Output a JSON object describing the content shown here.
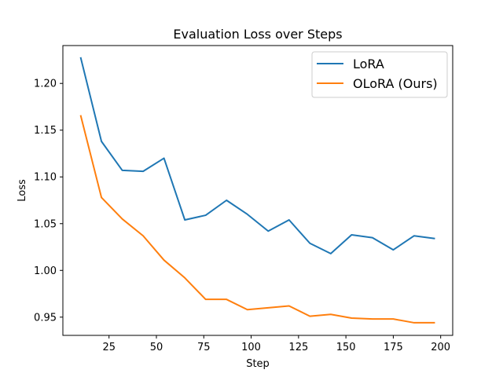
{
  "chart_data": {
    "type": "line",
    "title": "Evaluation Loss over Steps",
    "xlabel": "Step",
    "ylabel": "Loss",
    "xlim": [
      0.65,
      206.35
    ],
    "ylim": [
      0.9305,
      1.2405
    ],
    "xticks": [
      25,
      50,
      75,
      100,
      125,
      150,
      175,
      200
    ],
    "yticks": [
      0.95,
      1.0,
      1.05,
      1.1,
      1.15,
      1.2
    ],
    "xtick_labels": [
      "25",
      "50",
      "75",
      "100",
      "125",
      "150",
      "175",
      "200"
    ],
    "ytick_labels": [
      "0.95",
      "1.00",
      "1.05",
      "1.10",
      "1.15",
      "1.20"
    ],
    "grid": false,
    "legend_position": "upper right",
    "series": [
      {
        "name": "LoRA",
        "color": "#1f77b4",
        "x": [
          10,
          21,
          32,
          43,
          54,
          65,
          76,
          87,
          98,
          109,
          120,
          131,
          142,
          153,
          164,
          175,
          186,
          197
        ],
        "y": [
          1.228,
          1.138,
          1.107,
          1.106,
          1.12,
          1.054,
          1.059,
          1.075,
          1.06,
          1.042,
          1.054,
          1.029,
          1.018,
          1.038,
          1.035,
          1.022,
          1.037,
          1.034
        ]
      },
      {
        "name": "OLoRA (Ours)",
        "color": "#ff7f0e",
        "x": [
          10,
          21,
          32,
          43,
          54,
          65,
          76,
          87,
          98,
          109,
          120,
          131,
          142,
          153,
          164,
          175,
          186,
          197
        ],
        "y": [
          1.166,
          1.078,
          1.055,
          1.037,
          1.011,
          0.992,
          0.969,
          0.969,
          0.958,
          0.96,
          0.962,
          0.951,
          0.953,
          0.949,
          0.948,
          0.948,
          0.944,
          0.944
        ]
      }
    ]
  }
}
